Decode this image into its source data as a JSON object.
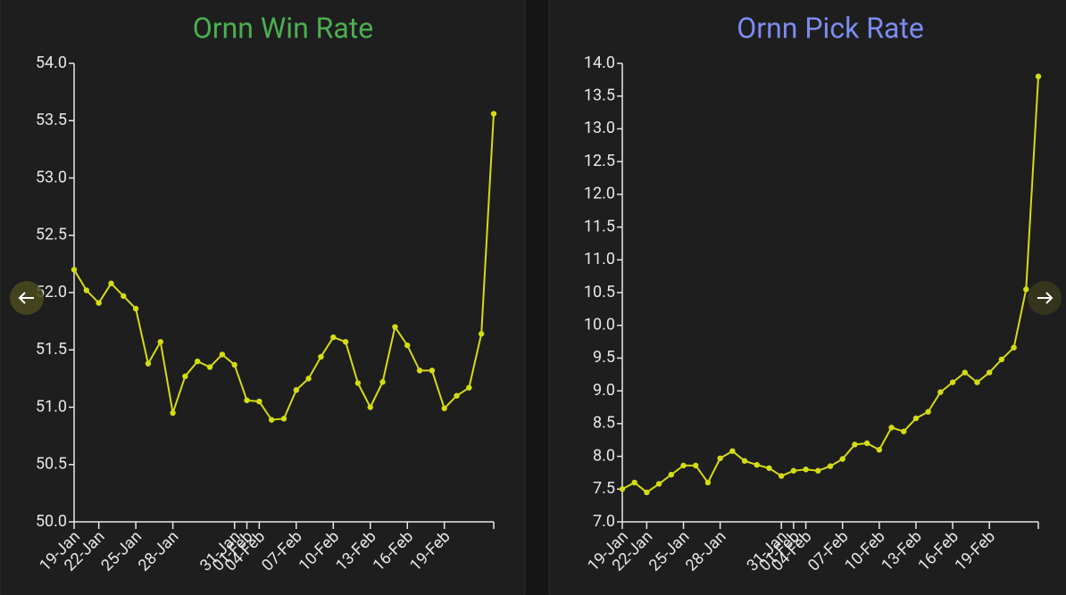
{
  "chart_data": [
    {
      "type": "line",
      "title": "Ornn Win Rate",
      "title_color": "#4caf50",
      "color": "#d4dc12",
      "categories": [
        "19-Jan",
        null,
        "22-Jan",
        null,
        null,
        "25-Jan",
        null,
        null,
        "28-Jan",
        null,
        null,
        null,
        null,
        "31-Jan",
        "01-Feb",
        "04-Feb",
        null,
        null,
        "07-Feb",
        null,
        null,
        "10-Feb",
        null,
        null,
        "13-Feb",
        null,
        null,
        "16-Feb",
        null,
        null,
        "19-Feb",
        null,
        null,
        null,
        null
      ],
      "values": [
        52.2,
        52.02,
        51.91,
        52.08,
        51.97,
        51.86,
        51.38,
        51.57,
        50.95,
        51.27,
        51.4,
        51.35,
        51.46,
        51.37,
        51.06,
        51.05,
        50.89,
        50.9,
        51.15,
        51.25,
        51.44,
        51.61,
        51.57,
        51.21,
        51.0,
        51.22,
        51.7,
        51.54,
        51.32,
        51.32,
        50.99,
        51.1,
        51.17,
        51.64,
        53.56
      ],
      "ylim": [
        50,
        54
      ],
      "yticks": [
        {
          "value": 50,
          "label": "50.0"
        },
        50.5,
        {
          "value": 51,
          "label": "51.0"
        },
        51.5,
        {
          "value": 52,
          "label": "52.0"
        },
        52.5,
        {
          "value": 53,
          "label": "53.0"
        },
        53.5,
        {
          "value": 54,
          "label": "54.0"
        }
      ]
    },
    {
      "type": "line",
      "title": "Ornn Pick Rate",
      "title_color": "#7d8cf0",
      "color": "#d4dc12",
      "categories": [
        "19-Jan",
        null,
        "22-Jan",
        null,
        null,
        "25-Jan",
        null,
        null,
        "28-Jan",
        null,
        null,
        null,
        null,
        "31-Jan",
        "01-Feb",
        "04-Feb",
        null,
        null,
        "07-Feb",
        null,
        null,
        "10-Feb",
        null,
        null,
        "13-Feb",
        null,
        null,
        "16-Feb",
        null,
        null,
        "19-Feb",
        null,
        null,
        null,
        null
      ],
      "values": [
        7.5,
        7.6,
        7.45,
        7.58,
        7.72,
        7.86,
        7.86,
        7.6,
        7.97,
        8.08,
        7.93,
        7.87,
        7.82,
        7.7,
        7.78,
        7.8,
        7.78,
        7.85,
        7.96,
        8.18,
        8.2,
        8.1,
        8.44,
        8.38,
        8.58,
        8.68,
        8.98,
        9.13,
        9.28,
        9.13,
        9.28,
        9.48,
        9.66,
        10.55,
        13.8
      ],
      "ylim": [
        7,
        14
      ],
      "yticks": [
        {
          "value": 7,
          "label": "7.0"
        },
        7.5,
        {
          "value": 8,
          "label": "8.0"
        },
        8.5,
        {
          "value": 9,
          "label": "9.0"
        },
        9.5,
        {
          "value": 10,
          "label": "10.0"
        },
        10.5,
        {
          "value": 11,
          "label": "11.0"
        },
        11.5,
        {
          "value": 12,
          "label": "12.0"
        },
        12.5,
        {
          "value": 13,
          "label": "13.0"
        },
        13.5,
        {
          "value": 14,
          "label": "14.0"
        }
      ]
    }
  ]
}
